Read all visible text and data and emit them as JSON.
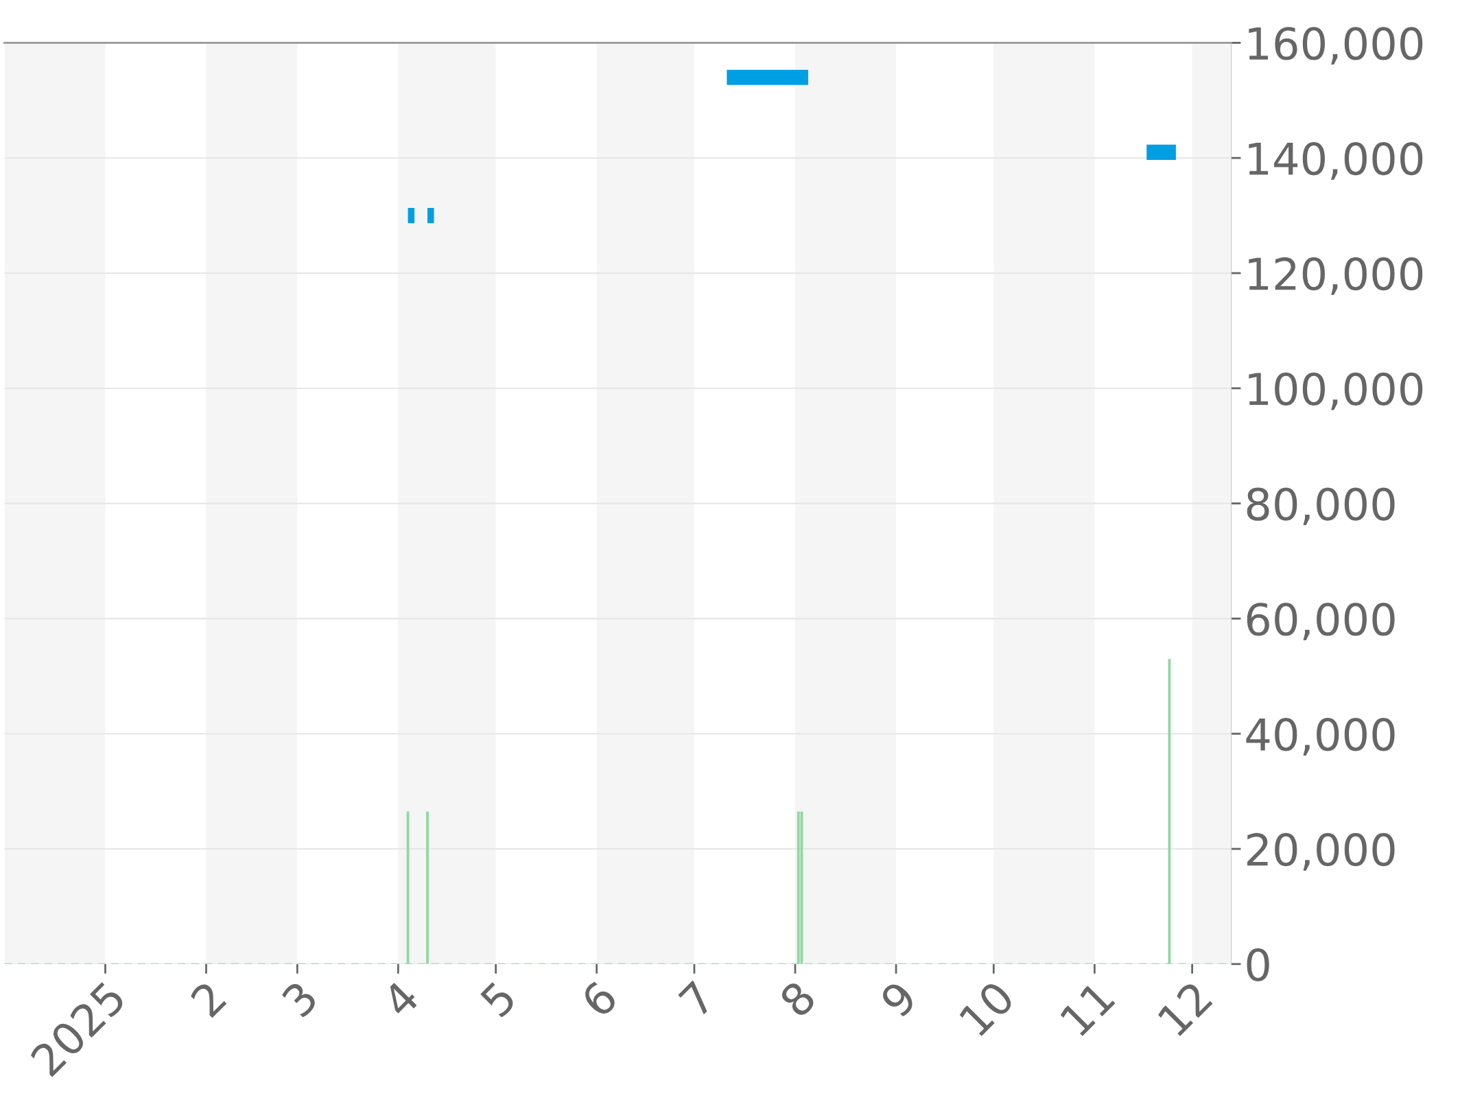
{
  "chart_data": {
    "type": "line",
    "series": [
      {
        "color": "#009ee3",
        "x": [
          "2025-04-04",
          "2025-04-06",
          "2025-04-08",
          "2025-04-10",
          "2025-04-12",
          "2025-05-01",
          "2025-07-11",
          "2025-08-05",
          "2025-09-01",
          "2025-11-17",
          "2025-11-26"
        ],
        "values": [
          130000,
          130000,
          null,
          130000,
          130000,
          null,
          154000,
          154000,
          null,
          141000,
          141000
        ]
      },
      {
        "type": "bar",
        "color": "#8fd9a0",
        "x": [
          "2025-04-04",
          "2025-04-10",
          "2025-08-02",
          "2025-08-03",
          "2025-11-24"
        ],
        "values": [
          26500,
          26500,
          26500,
          26500,
          53000
        ]
      }
    ],
    "xlim": [
      "2024-12-01",
      "2025-12-13"
    ],
    "xticks": [
      {
        "value": "2025-01-01",
        "label": "2025"
      },
      {
        "value": "2025-02-01",
        "label": "2"
      },
      {
        "value": "2025-03-01",
        "label": "3"
      },
      {
        "value": "2025-04-01",
        "label": "4"
      },
      {
        "value": "2025-05-01",
        "label": "5"
      },
      {
        "value": "2025-06-01",
        "label": "6"
      },
      {
        "value": "2025-07-01",
        "label": "7"
      },
      {
        "value": "2025-08-01",
        "label": "8"
      },
      {
        "value": "2025-09-01",
        "label": "9"
      },
      {
        "value": "2025-10-01",
        "label": "10"
      },
      {
        "value": "2025-11-01",
        "label": "11"
      },
      {
        "value": "2025-12-01",
        "label": "12"
      }
    ],
    "ylim": [
      0,
      160000
    ],
    "yticks": [
      0,
      {
        "value": 20000,
        "label": "20,000"
      },
      {
        "value": 40000,
        "label": "40,000"
      },
      {
        "value": 60000,
        "label": "60,000"
      },
      {
        "value": 80000,
        "label": "80,000"
      },
      {
        "value": 100000,
        "label": "100,000"
      },
      {
        "value": 120000,
        "label": "120,000"
      },
      {
        "value": 140000,
        "label": "140,000"
      },
      {
        "value": 160000,
        "label": "160,000"
      }
    ],
    "grid": "y",
    "legend": false,
    "ref_lines": [
      {
        "axis": "y",
        "value": 0,
        "color": "#a8e0b4",
        "line_style": "dashed"
      }
    ],
    "bands": [
      {
        "axis": "x",
        "from": "2024-12-01",
        "to": "2025-01-01",
        "color": "#f5f5f5"
      },
      {
        "axis": "x",
        "from": "2025-02-01",
        "to": "2025-03-01",
        "color": "#f5f5f5"
      },
      {
        "axis": "x",
        "from": "2025-04-01",
        "to": "2025-05-01",
        "color": "#f5f5f5"
      },
      {
        "axis": "x",
        "from": "2025-06-01",
        "to": "2025-07-01",
        "color": "#f5f5f5"
      },
      {
        "axis": "x",
        "from": "2025-08-01",
        "to": "2025-09-01",
        "color": "#f5f5f5"
      },
      {
        "axis": "x",
        "from": "2025-10-01",
        "to": "2025-11-01",
        "color": "#f5f5f5"
      },
      {
        "axis": "x",
        "from": "2025-12-01",
        "to": "2025-12-13",
        "color": "#f5f5f5"
      }
    ]
  }
}
